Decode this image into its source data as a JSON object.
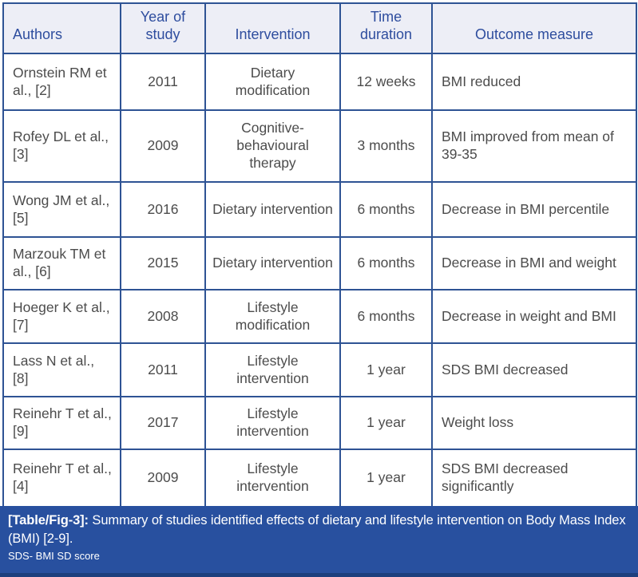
{
  "table": {
    "headers": [
      {
        "key": "authors",
        "label": "Authors"
      },
      {
        "key": "year",
        "label": "Year of study"
      },
      {
        "key": "intervention",
        "label": "Intervention"
      },
      {
        "key": "duration",
        "label": "Time duration"
      },
      {
        "key": "outcome",
        "label": "Outcome measure"
      }
    ],
    "columns": [
      "authors",
      "year",
      "intervention",
      "duration",
      "outcome"
    ],
    "rows": [
      {
        "authors": "Ornstein RM et al., [2]",
        "year": "2011",
        "intervention": "Dietary modification",
        "duration": "12 weeks",
        "outcome": "BMI reduced"
      },
      {
        "authors": "Rofey DL et al., [3]",
        "year": "2009",
        "intervention": "Cognitive-behavioural therapy",
        "duration": "3 months",
        "outcome": "BMI improved from mean of 39-35"
      },
      {
        "authors": "Wong JM et al., [5]",
        "year": "2016",
        "intervention": "Dietary intervention",
        "duration": "6 months",
        "outcome": "Decrease in BMI percentile"
      },
      {
        "authors": "Marzouk TM et al., [6]",
        "year": "2015",
        "intervention": "Dietary intervention",
        "duration": "6 months",
        "outcome": "Decrease in BMI and weight"
      },
      {
        "authors": "Hoeger K et al., [7]",
        "year": "2008",
        "intervention": "Lifestyle modification",
        "duration": "6 months",
        "outcome": "Decrease in weight and BMI"
      },
      {
        "authors": "Lass N et al., [8]",
        "year": "2011",
        "intervention": "Lifestyle intervention",
        "duration": "1 year",
        "outcome": "SDS BMI decreased"
      },
      {
        "authors": "Reinehr T et al., [9]",
        "year": "2017",
        "intervention": "Lifestyle intervention",
        "duration": "1 year",
        "outcome": "Weight loss"
      },
      {
        "authors": "Reinehr T et al., [4]",
        "year": "2009",
        "intervention": "Lifestyle intervention",
        "duration": "1 year",
        "outcome": "SDS BMI decreased significantly"
      }
    ]
  },
  "caption": {
    "label": "[Table/Fig-3]:",
    "text": " Summary of studies identified effects of dietary and lifestyle intervention on Body Mass Index (BMI) [2-9].",
    "footnote": "SDS- BMI SD score"
  },
  "colors": {
    "border_blue": "#2e5394",
    "header_bg": "#edeef6",
    "header_text": "#2e4d9e",
    "body_text": "#4c4c4c",
    "caption_bg": "#28509f",
    "caption_bottom_strip": "#1d3f7d",
    "caption_text": "#ffffff"
  }
}
